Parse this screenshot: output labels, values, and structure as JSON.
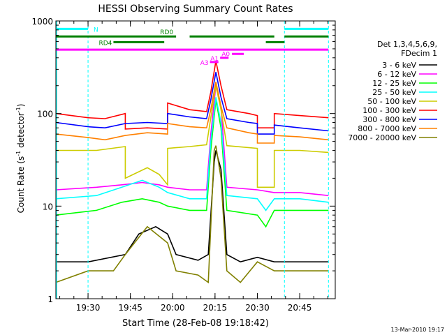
{
  "chart_data": {
    "type": "line",
    "title": "HESSI Observing Summary Count Rates",
    "xlabel": "Start Time (28-Feb-08 19:18:42)",
    "ylabel_main": "Count Rate (s",
    "ylabel_sup1": "-1",
    "ylabel_mid": " detector",
    "ylabel_sup2": "-1",
    "ylabel_end": ")",
    "yscale": "log",
    "xlim": [
      19.31,
      20.96
    ],
    "ylim": [
      1,
      1000
    ],
    "x_ticks": [
      {
        "t": 19.5,
        "label": "19:30"
      },
      {
        "t": 19.75,
        "label": "19:45"
      },
      {
        "t": 20.0,
        "label": "20:00"
      },
      {
        "t": 20.25,
        "label": "20:15"
      },
      {
        "t": 20.5,
        "label": "20:30"
      },
      {
        "t": 20.75,
        "label": "20:45"
      }
    ],
    "y_ticks": [
      {
        "v": 1,
        "label": "1"
      },
      {
        "v": 10,
        "label": "10"
      },
      {
        "v": 100,
        "label": "100"
      },
      {
        "v": 1000,
        "label": "1000"
      }
    ],
    "legend_position": "right",
    "legend_header": [
      "Det 1,3,4,5,6,9,",
      "FDecim 1"
    ],
    "series": [
      {
        "name": "3 - 6 keV",
        "color": "#000000",
        "points": [
          [
            19.31,
            2.5
          ],
          [
            19.5,
            2.5
          ],
          [
            19.72,
            3
          ],
          [
            19.8,
            5
          ],
          [
            19.9,
            6
          ],
          [
            19.97,
            5
          ],
          [
            20.02,
            3
          ],
          [
            20.15,
            2.6
          ],
          [
            20.21,
            3
          ],
          [
            20.245,
            30
          ],
          [
            20.255,
            40
          ],
          [
            20.285,
            25
          ],
          [
            20.32,
            3
          ],
          [
            20.4,
            2.5
          ],
          [
            20.5,
            2.8
          ],
          [
            20.6,
            2.5
          ],
          [
            20.75,
            2.5
          ],
          [
            20.92,
            2.5
          ]
        ]
      },
      {
        "name": "6 - 12 keV",
        "color": "#ff00ff",
        "points": [
          [
            19.31,
            15
          ],
          [
            19.55,
            16
          ],
          [
            19.7,
            17
          ],
          [
            19.82,
            18
          ],
          [
            19.92,
            17
          ],
          [
            19.97,
            16
          ],
          [
            20.1,
            15
          ],
          [
            20.2,
            15
          ],
          [
            20.225,
            60
          ],
          [
            20.255,
            200
          ],
          [
            20.285,
            120
          ],
          [
            20.32,
            16
          ],
          [
            20.5,
            15
          ],
          [
            20.6,
            14
          ],
          [
            20.75,
            14
          ],
          [
            20.92,
            13
          ]
        ]
      },
      {
        "name": "12 - 25 keV",
        "color": "#00ff00",
        "points": [
          [
            19.31,
            8
          ],
          [
            19.55,
            9
          ],
          [
            19.7,
            11
          ],
          [
            19.82,
            12
          ],
          [
            19.92,
            11
          ],
          [
            19.97,
            10
          ],
          [
            20.1,
            9
          ],
          [
            20.2,
            9
          ],
          [
            20.225,
            40
          ],
          [
            20.255,
            140
          ],
          [
            20.285,
            70
          ],
          [
            20.32,
            9
          ],
          [
            20.5,
            8
          ],
          [
            20.55,
            6
          ],
          [
            20.6,
            9
          ],
          [
            20.75,
            9
          ],
          [
            20.92,
            9
          ]
        ]
      },
      {
        "name": "25 - 50 keV",
        "color": "#00ffff",
        "points": [
          [
            19.31,
            12
          ],
          [
            19.55,
            13
          ],
          [
            19.7,
            16
          ],
          [
            19.82,
            19
          ],
          [
            19.92,
            16
          ],
          [
            19.97,
            14
          ],
          [
            20.1,
            12
          ],
          [
            20.2,
            12
          ],
          [
            20.225,
            50
          ],
          [
            20.255,
            150
          ],
          [
            20.285,
            80
          ],
          [
            20.32,
            13
          ],
          [
            20.5,
            12
          ],
          [
            20.55,
            9
          ],
          [
            20.6,
            12
          ],
          [
            20.75,
            12
          ],
          [
            20.92,
            11
          ]
        ]
      },
      {
        "name": "50 - 100 keV",
        "color": "#cccc00",
        "points": [
          [
            19.31,
            40
          ],
          [
            19.55,
            40
          ],
          [
            19.72,
            44
          ],
          [
            19.72,
            20
          ],
          [
            19.85,
            26
          ],
          [
            19.92,
            22
          ],
          [
            19.97,
            17
          ],
          [
            19.97,
            42
          ],
          [
            20.1,
            44
          ],
          [
            20.2,
            46
          ],
          [
            20.225,
            90
          ],
          [
            20.255,
            200
          ],
          [
            20.285,
            110
          ],
          [
            20.32,
            45
          ],
          [
            20.5,
            42
          ],
          [
            20.5,
            16
          ],
          [
            20.6,
            16
          ],
          [
            20.6,
            40
          ],
          [
            20.75,
            40
          ],
          [
            20.92,
            38
          ]
        ]
      },
      {
        "name": "100 - 300 keV",
        "color": "#ff0000",
        "points": [
          [
            19.31,
            100
          ],
          [
            19.5,
            90
          ],
          [
            19.6,
            88
          ],
          [
            19.72,
            100
          ],
          [
            19.72,
            68
          ],
          [
            19.85,
            70
          ],
          [
            19.97,
            68
          ],
          [
            19.97,
            130
          ],
          [
            20.1,
            110
          ],
          [
            20.2,
            105
          ],
          [
            20.225,
            170
          ],
          [
            20.255,
            370
          ],
          [
            20.285,
            200
          ],
          [
            20.32,
            110
          ],
          [
            20.45,
            100
          ],
          [
            20.5,
            95
          ],
          [
            20.5,
            70
          ],
          [
            20.6,
            70
          ],
          [
            20.6,
            100
          ],
          [
            20.75,
            95
          ],
          [
            20.92,
            90
          ]
        ]
      },
      {
        "name": "300 - 800 keV",
        "color": "#0000ff",
        "points": [
          [
            19.31,
            80
          ],
          [
            19.5,
            72
          ],
          [
            19.6,
            70
          ],
          [
            19.72,
            78
          ],
          [
            19.85,
            80
          ],
          [
            19.97,
            78
          ],
          [
            19.97,
            100
          ],
          [
            20.1,
            92
          ],
          [
            20.2,
            88
          ],
          [
            20.225,
            140
          ],
          [
            20.255,
            280
          ],
          [
            20.285,
            150
          ],
          [
            20.32,
            88
          ],
          [
            20.45,
            80
          ],
          [
            20.5,
            78
          ],
          [
            20.5,
            60
          ],
          [
            20.6,
            60
          ],
          [
            20.6,
            75
          ],
          [
            20.75,
            70
          ],
          [
            20.92,
            65
          ]
        ]
      },
      {
        "name": "800 - 7000 keV",
        "color": "#ff8000",
        "points": [
          [
            19.31,
            60
          ],
          [
            19.5,
            55
          ],
          [
            19.6,
            52
          ],
          [
            19.72,
            58
          ],
          [
            19.85,
            62
          ],
          [
            19.97,
            60
          ],
          [
            19.97,
            78
          ],
          [
            20.1,
            72
          ],
          [
            20.2,
            70
          ],
          [
            20.225,
            110
          ],
          [
            20.255,
            220
          ],
          [
            20.285,
            120
          ],
          [
            20.32,
            70
          ],
          [
            20.45,
            62
          ],
          [
            20.5,
            60
          ],
          [
            20.5,
            48
          ],
          [
            20.6,
            48
          ],
          [
            20.6,
            58
          ],
          [
            20.75,
            56
          ],
          [
            20.92,
            52
          ]
        ]
      },
      {
        "name": "7000 - 20000 keV",
        "color": "#808000",
        "points": [
          [
            19.31,
            1.5
          ],
          [
            19.5,
            2
          ],
          [
            19.65,
            2
          ],
          [
            19.72,
            3
          ],
          [
            19.85,
            6
          ],
          [
            19.97,
            4
          ],
          [
            20.02,
            2
          ],
          [
            20.15,
            1.8
          ],
          [
            20.21,
            1.5
          ],
          [
            20.245,
            40
          ],
          [
            20.255,
            45
          ],
          [
            20.285,
            20
          ],
          [
            20.32,
            2
          ],
          [
            20.4,
            1.5
          ],
          [
            20.5,
            2.5
          ],
          [
            20.6,
            2
          ],
          [
            20.75,
            2
          ],
          [
            20.92,
            2
          ]
        ]
      }
    ],
    "attenuator_lines": [
      {
        "color": "#00ffff",
        "t": 19.5
      },
      {
        "color": "#00ffff",
        "t": 20.66
      },
      {
        "color": "#00ffff",
        "t": 20.92
      }
    ],
    "flag_bars": [
      {
        "label": "N",
        "color": "#00ffff",
        "value": 820,
        "segments": [
          [
            19.31,
            19.5
          ],
          [
            20.66,
            20.92
          ]
        ]
      },
      {
        "label": "RD0",
        "color": "#008000",
        "value": 680,
        "segments": [
          [
            19.31,
            20.02
          ],
          [
            20.1,
            20.6
          ],
          [
            20.66,
            20.92
          ]
        ]
      },
      {
        "label": "RD4",
        "color": "#008000",
        "value": 590,
        "segments": [
          [
            19.65,
            19.95
          ],
          [
            20.55,
            20.66
          ]
        ]
      },
      {
        "label": "",
        "color": "#ff00ff",
        "value": 490,
        "segments": [
          [
            19.31,
            20.92
          ]
        ]
      },
      {
        "label": "A0",
        "color": "#ff00ff",
        "value": 440,
        "segments": [
          [
            20.35,
            20.42
          ]
        ]
      },
      {
        "label": "A1",
        "color": "#ff00ff",
        "value": 400,
        "segments": [
          [
            20.28,
            20.33
          ]
        ]
      },
      {
        "label": "A3",
        "color": "#ff00ff",
        "value": 360,
        "segments": [
          [
            20.22,
            20.27
          ]
        ]
      }
    ],
    "grid": false
  },
  "footer_timestamp": "13-Mar-2010 19:17"
}
